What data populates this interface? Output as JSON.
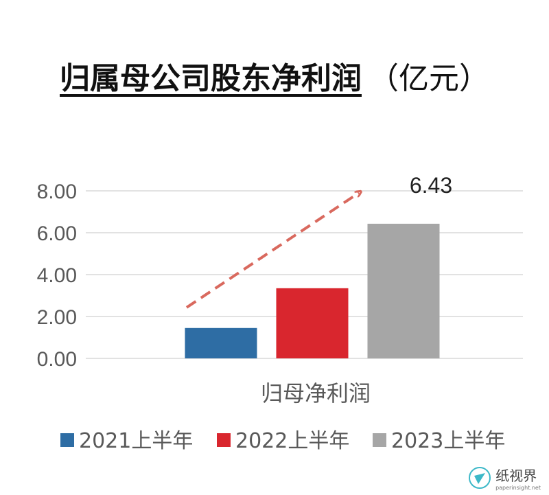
{
  "title": {
    "main": "归属母公司股东净利润",
    "unit": "（亿元）"
  },
  "chart_data": {
    "type": "bar",
    "categories": [
      "归母净利润"
    ],
    "series": [
      {
        "name": "2021上半年",
        "values": [
          1.45
        ],
        "color": "#2e6da4"
      },
      {
        "name": "2022上半年",
        "values": [
          3.35
        ],
        "color": "#d9262e"
      },
      {
        "name": "2023上半年",
        "values": [
          6.43
        ],
        "color": "#a6a6a6"
      }
    ],
    "ylim": [
      0,
      8
    ],
    "yticks": [
      "0.00",
      "2.00",
      "4.00",
      "6.00",
      "8.00"
    ],
    "data_labels": {
      "2023上半年": "6.43"
    },
    "annotation": "dashed-red-trend-arrow",
    "grid": true,
    "legend": "bottom"
  },
  "watermark": {
    "text": "纸视界",
    "sub": "paperinsight.net"
  }
}
